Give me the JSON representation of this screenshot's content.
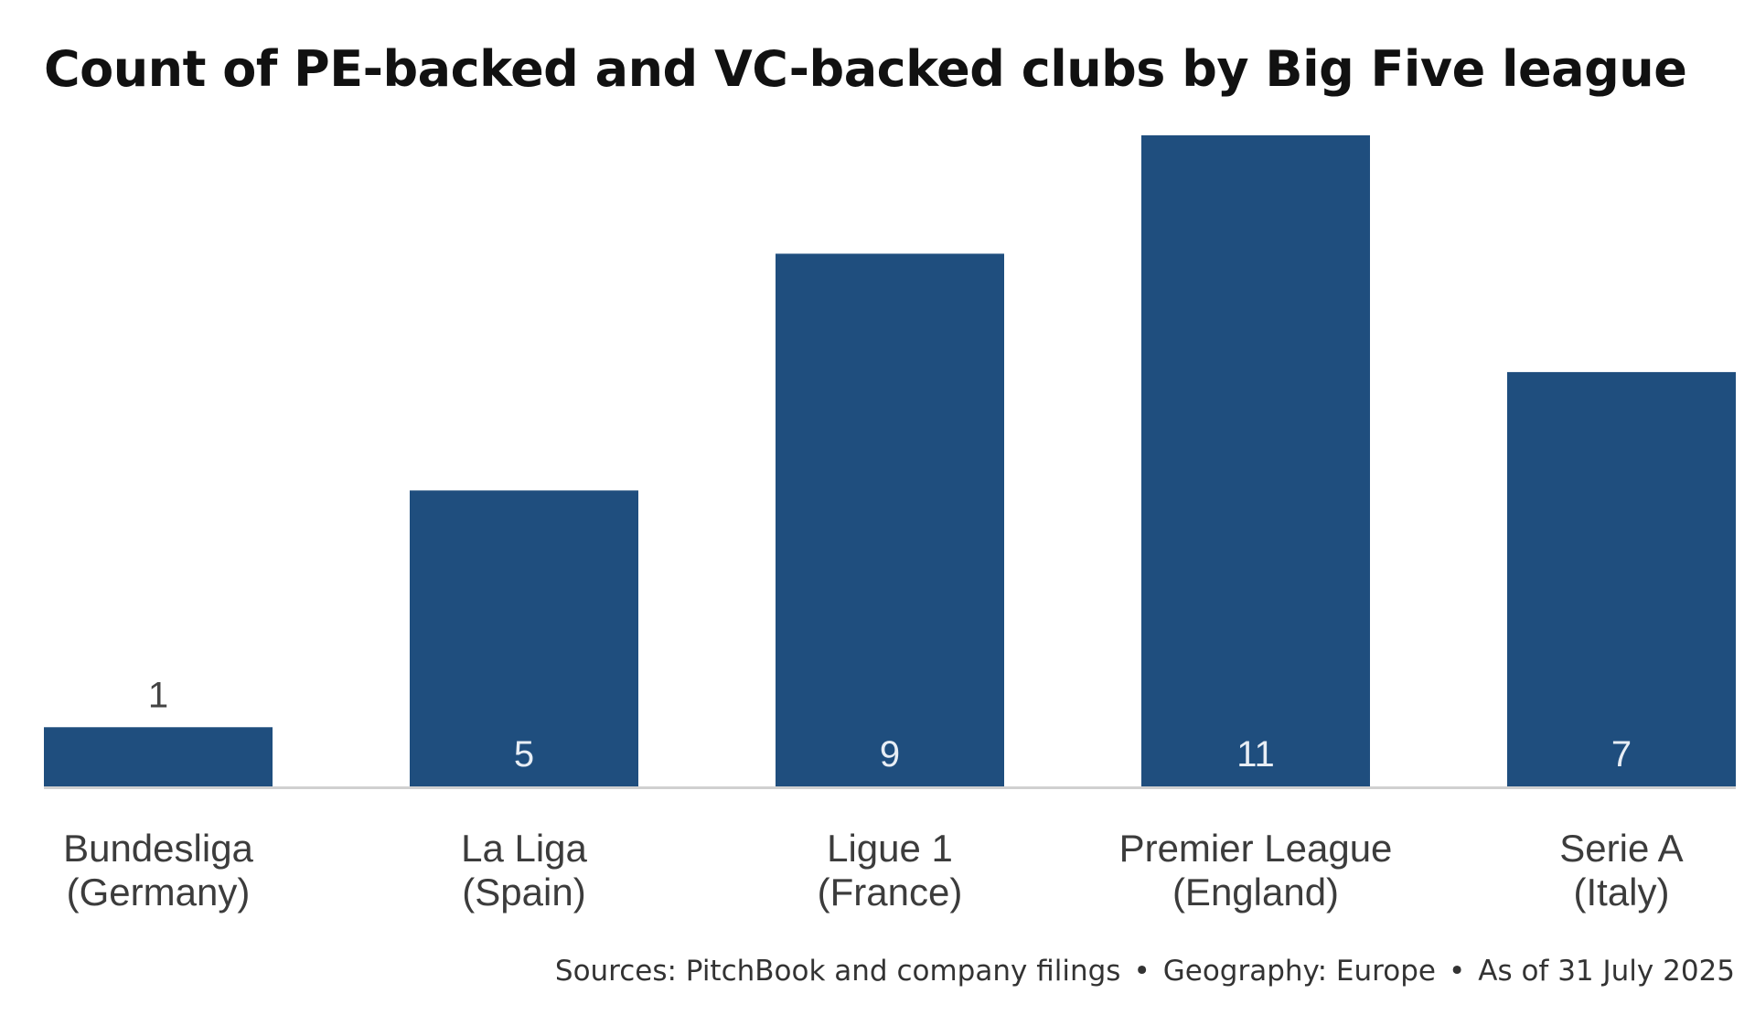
{
  "chart_data": {
    "type": "bar",
    "title": "Count of PE-backed and VC-backed clubs by Big Five league",
    "categories": [
      [
        "Bundesliga",
        "(Germany)"
      ],
      [
        "La Liga",
        "(Spain)"
      ],
      [
        "Ligue 1",
        "(France)"
      ],
      [
        "Premier League",
        "(England)"
      ],
      [
        "Serie A",
        "(Italy)"
      ]
    ],
    "values": [
      1,
      5,
      9,
      11,
      7
    ],
    "value_labels": [
      "1",
      "5",
      "9",
      "11",
      "7"
    ],
    "xlabel": "",
    "ylabel": "",
    "ylim": [
      0,
      11
    ],
    "grid": false,
    "legend": "none",
    "colors": {
      "bar": "#1f4e7e",
      "label_inside": "#e8eef5",
      "label_outside": "#444444",
      "baseline": "#d0d0d0"
    }
  },
  "footer": {
    "sources": "Sources: PitchBook and company filings",
    "geography": "Geography: Europe",
    "as_of": "As of 31 July 2025",
    "separator": "•"
  }
}
